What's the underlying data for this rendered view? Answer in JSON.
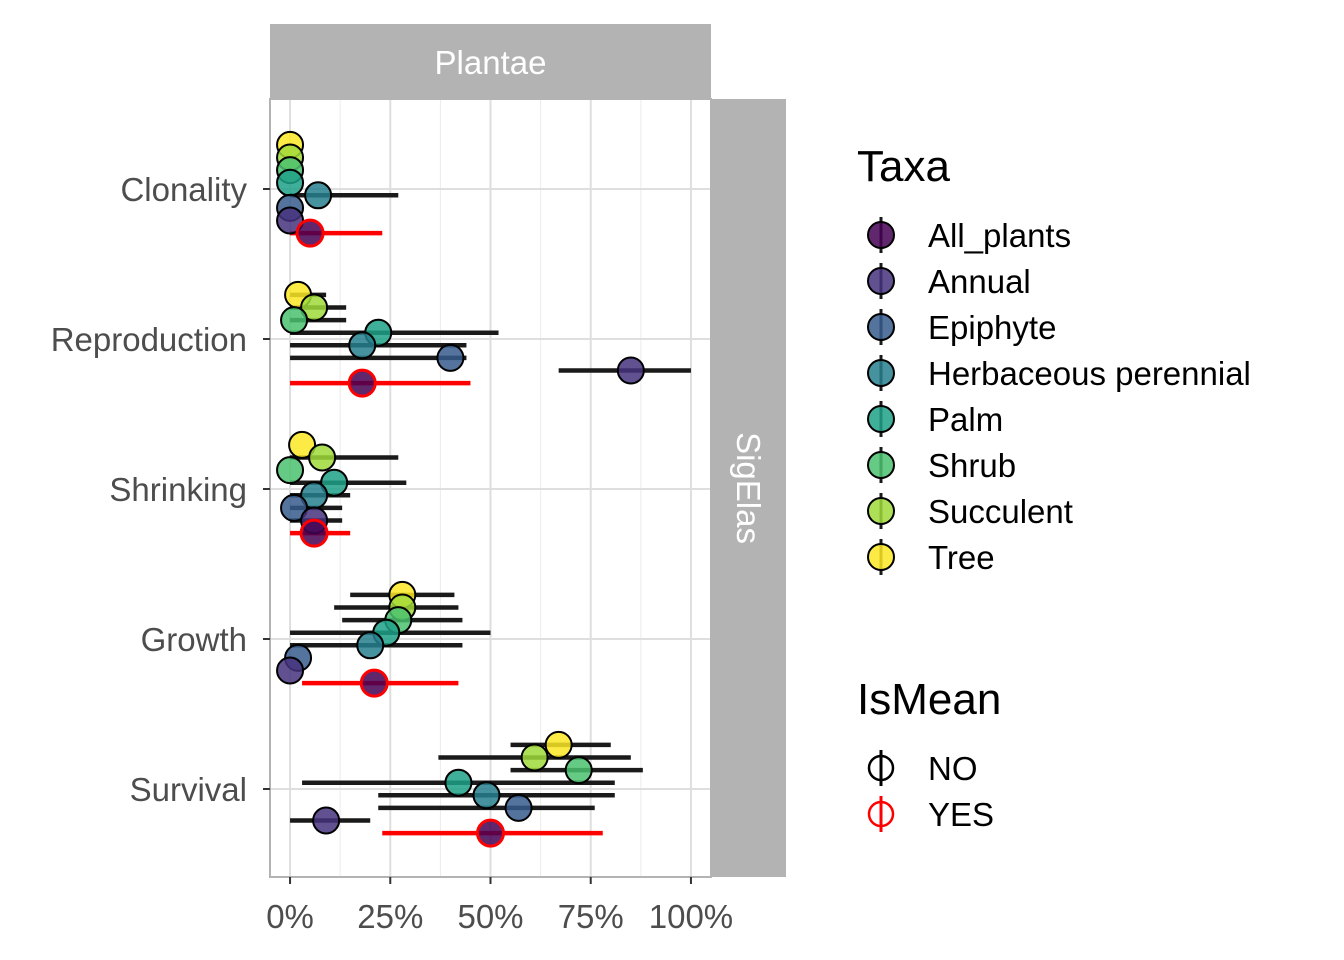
{
  "chart_data": {
    "type": "scatter",
    "facet_column": "Plantae",
    "facet_row": "SigElas",
    "categories": [
      "Clonality",
      "Reproduction",
      "Shrinking",
      "Growth",
      "Survival"
    ],
    "x_ticks": [
      "0%",
      "25%",
      "50%",
      "75%",
      "100%"
    ],
    "xlim": [
      -0.05,
      1.05
    ],
    "grid": true,
    "legend_position": "right",
    "taxa_legend": {
      "title": "Taxa",
      "items": [
        {
          "name": "All_plants",
          "color": "#440154"
        },
        {
          "name": "Annual",
          "color": "#46337E"
        },
        {
          "name": "Epiphyte",
          "color": "#365C8D"
        },
        {
          "name": "Herbaceous perennial",
          "color": "#277F8E"
        },
        {
          "name": "Palm",
          "color": "#1FA187"
        },
        {
          "name": "Shrub",
          "color": "#4AC16D"
        },
        {
          "name": "Succulent",
          "color": "#9FDA3A"
        },
        {
          "name": "Tree",
          "color": "#FDE725"
        }
      ]
    },
    "ismean_legend": {
      "title": "IsMean",
      "items": [
        {
          "name": "NO",
          "color": "#000000"
        },
        {
          "name": "YES",
          "color": "#FF0000"
        }
      ]
    },
    "points": [
      {
        "category": "Clonality",
        "taxon": "All_plants",
        "is_mean": true,
        "x": 0.05,
        "low": 0.0,
        "high": 0.23
      },
      {
        "category": "Clonality",
        "taxon": "Annual",
        "is_mean": false,
        "x": 0.0,
        "low": 0.0,
        "high": 0.0
      },
      {
        "category": "Clonality",
        "taxon": "Epiphyte",
        "is_mean": false,
        "x": 0.0,
        "low": 0.0,
        "high": 0.0
      },
      {
        "category": "Clonality",
        "taxon": "Herbaceous perennial",
        "is_mean": false,
        "x": 0.07,
        "low": 0.0,
        "high": 0.27
      },
      {
        "category": "Clonality",
        "taxon": "Palm",
        "is_mean": false,
        "x": 0.0,
        "low": 0.0,
        "high": 0.0
      },
      {
        "category": "Clonality",
        "taxon": "Shrub",
        "is_mean": false,
        "x": 0.0,
        "low": 0.0,
        "high": 0.0
      },
      {
        "category": "Clonality",
        "taxon": "Succulent",
        "is_mean": false,
        "x": 0.0,
        "low": 0.0,
        "high": 0.0
      },
      {
        "category": "Clonality",
        "taxon": "Tree",
        "is_mean": false,
        "x": 0.0,
        "low": 0.0,
        "high": 0.0
      },
      {
        "category": "Reproduction",
        "taxon": "All_plants",
        "is_mean": true,
        "x": 0.18,
        "low": 0.0,
        "high": 0.45
      },
      {
        "category": "Reproduction",
        "taxon": "Annual",
        "is_mean": false,
        "x": 0.85,
        "low": 0.67,
        "high": 1.0
      },
      {
        "category": "Reproduction",
        "taxon": "Epiphyte",
        "is_mean": false,
        "x": 0.4,
        "low": 0.0,
        "high": 0.44
      },
      {
        "category": "Reproduction",
        "taxon": "Herbaceous perennial",
        "is_mean": false,
        "x": 0.18,
        "low": 0.0,
        "high": 0.44
      },
      {
        "category": "Reproduction",
        "taxon": "Palm",
        "is_mean": false,
        "x": 0.22,
        "low": 0.0,
        "high": 0.52
      },
      {
        "category": "Reproduction",
        "taxon": "Shrub",
        "is_mean": false,
        "x": 0.01,
        "low": 0.0,
        "high": 0.14
      },
      {
        "category": "Reproduction",
        "taxon": "Succulent",
        "is_mean": false,
        "x": 0.06,
        "low": 0.0,
        "high": 0.14
      },
      {
        "category": "Reproduction",
        "taxon": "Tree",
        "is_mean": false,
        "x": 0.02,
        "low": 0.0,
        "high": 0.09
      },
      {
        "category": "Shrinking",
        "taxon": "All_plants",
        "is_mean": true,
        "x": 0.06,
        "low": 0.0,
        "high": 0.15
      },
      {
        "category": "Shrinking",
        "taxon": "Annual",
        "is_mean": false,
        "x": 0.06,
        "low": 0.0,
        "high": 0.13
      },
      {
        "category": "Shrinking",
        "taxon": "Epiphyte",
        "is_mean": false,
        "x": 0.01,
        "low": 0.0,
        "high": 0.13
      },
      {
        "category": "Shrinking",
        "taxon": "Herbaceous perennial",
        "is_mean": false,
        "x": 0.06,
        "low": 0.0,
        "high": 0.15
      },
      {
        "category": "Shrinking",
        "taxon": "Palm",
        "is_mean": false,
        "x": 0.11,
        "low": 0.0,
        "high": 0.29
      },
      {
        "category": "Shrinking",
        "taxon": "Shrub",
        "is_mean": false,
        "x": 0.0,
        "low": 0.0,
        "high": 0.0
      },
      {
        "category": "Shrinking",
        "taxon": "Succulent",
        "is_mean": false,
        "x": 0.08,
        "low": 0.0,
        "high": 0.27
      },
      {
        "category": "Shrinking",
        "taxon": "Tree",
        "is_mean": false,
        "x": 0.03,
        "low": 0.0,
        "high": 0.0
      },
      {
        "category": "Growth",
        "taxon": "All_plants",
        "is_mean": true,
        "x": 0.21,
        "low": 0.03,
        "high": 0.42
      },
      {
        "category": "Growth",
        "taxon": "Annual",
        "is_mean": false,
        "x": 0.0,
        "low": 0.0,
        "high": 0.0
      },
      {
        "category": "Growth",
        "taxon": "Epiphyte",
        "is_mean": false,
        "x": 0.02,
        "low": 0.0,
        "high": 0.0
      },
      {
        "category": "Growth",
        "taxon": "Herbaceous perennial",
        "is_mean": false,
        "x": 0.2,
        "low": 0.0,
        "high": 0.43
      },
      {
        "category": "Growth",
        "taxon": "Palm",
        "is_mean": false,
        "x": 0.24,
        "low": 0.0,
        "high": 0.5
      },
      {
        "category": "Growth",
        "taxon": "Shrub",
        "is_mean": false,
        "x": 0.27,
        "low": 0.13,
        "high": 0.43
      },
      {
        "category": "Growth",
        "taxon": "Succulent",
        "is_mean": false,
        "x": 0.28,
        "low": 0.11,
        "high": 0.42
      },
      {
        "category": "Growth",
        "taxon": "Tree",
        "is_mean": false,
        "x": 0.28,
        "low": 0.15,
        "high": 0.41
      },
      {
        "category": "Survival",
        "taxon": "All_plants",
        "is_mean": true,
        "x": 0.5,
        "low": 0.23,
        "high": 0.78
      },
      {
        "category": "Survival",
        "taxon": "Annual",
        "is_mean": false,
        "x": 0.09,
        "low": 0.0,
        "high": 0.2
      },
      {
        "category": "Survival",
        "taxon": "Epiphyte",
        "is_mean": false,
        "x": 0.57,
        "low": 0.22,
        "high": 0.76
      },
      {
        "category": "Survival",
        "taxon": "Herbaceous perennial",
        "is_mean": false,
        "x": 0.49,
        "low": 0.22,
        "high": 0.81
      },
      {
        "category": "Survival",
        "taxon": "Palm",
        "is_mean": false,
        "x": 0.42,
        "low": 0.03,
        "high": 0.81
      },
      {
        "category": "Survival",
        "taxon": "Shrub",
        "is_mean": false,
        "x": 0.72,
        "low": 0.55,
        "high": 0.88
      },
      {
        "category": "Survival",
        "taxon": "Succulent",
        "is_mean": false,
        "x": 0.61,
        "low": 0.37,
        "high": 0.85
      },
      {
        "category": "Survival",
        "taxon": "Tree",
        "is_mean": false,
        "x": 0.67,
        "low": 0.55,
        "high": 0.8
      }
    ]
  }
}
